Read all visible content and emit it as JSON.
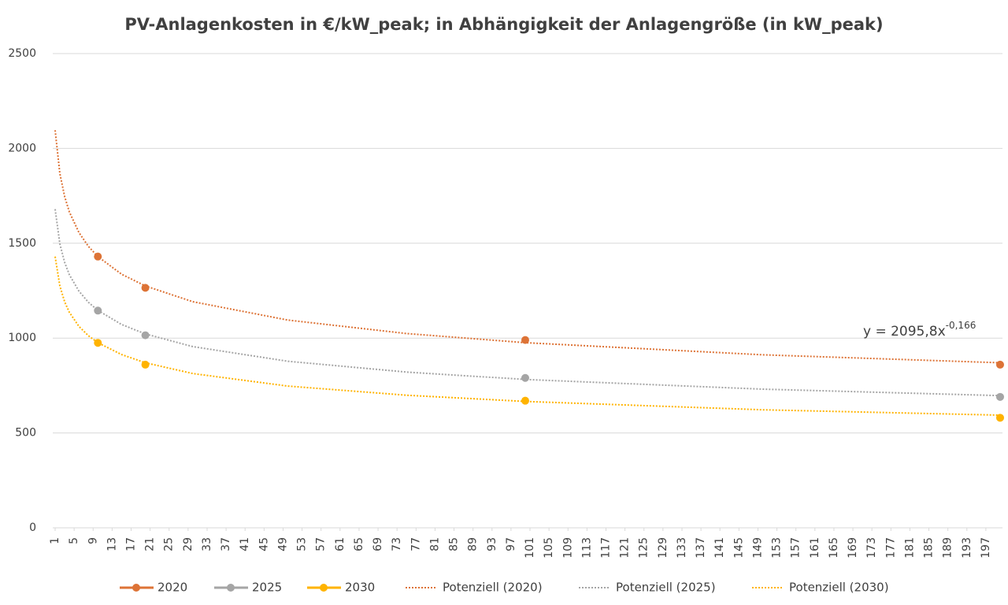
{
  "chart_data": {
    "type": "scatter",
    "title": "PV-Anlagenkosten in €/kW_peak; in Abhängigkeit der Anlagengröße (in kW_peak)",
    "xlim": [
      0.5,
      200.5
    ],
    "xticks": [
      1,
      5,
      9,
      13,
      17,
      21,
      25,
      29,
      33,
      37,
      41,
      45,
      49,
      53,
      57,
      61,
      65,
      69,
      73,
      77,
      81,
      85,
      89,
      93,
      97,
      101,
      105,
      109,
      113,
      117,
      121,
      125,
      129,
      133,
      137,
      141,
      145,
      149,
      153,
      157,
      161,
      165,
      169,
      173,
      177,
      181,
      185,
      189,
      193,
      197
    ],
    "ylim": [
      0,
      2500
    ],
    "yticks": [
      0,
      500,
      1000,
      1500,
      2000,
      2500
    ],
    "grid": true,
    "series": [
      {
        "name": "2020",
        "color": "#dd7336",
        "style": "marker",
        "x": [
          10,
          20,
          100,
          200
        ],
        "values": [
          1430,
          1265,
          990,
          860
        ]
      },
      {
        "name": "2025",
        "color": "#a5a5a5",
        "style": "marker",
        "x": [
          10,
          20,
          100,
          200
        ],
        "values": [
          1145,
          1015,
          790,
          690
        ]
      },
      {
        "name": "2030",
        "color": "#ffb300",
        "style": "marker",
        "x": [
          10,
          20,
          100,
          200
        ],
        "values": [
          975,
          860,
          670,
          580
        ]
      },
      {
        "name": "Potenziell (2020)",
        "color": "#dd7336",
        "style": "dotted",
        "x": [
          1,
          2,
          3,
          4,
          6,
          8,
          10,
          15,
          20,
          30,
          50,
          75,
          100,
          150,
          200
        ],
        "values": [
          2096,
          1868,
          1746,
          1665,
          1557,
          1484,
          1430,
          1337,
          1275,
          1192,
          1095,
          1024,
          976,
          912,
          870
        ]
      },
      {
        "name": "Potenziell (2025)",
        "color": "#a5a5a5",
        "style": "dotted",
        "x": [
          1,
          2,
          3,
          4,
          6,
          8,
          10,
          15,
          20,
          30,
          50,
          75,
          100,
          150,
          200
        ],
        "values": [
          1680,
          1497,
          1399,
          1334,
          1248,
          1189,
          1146,
          1072,
          1022,
          955,
          878,
          821,
          782,
          731,
          697
        ]
      },
      {
        "name": "Potenziell (2030)",
        "color": "#ffb300",
        "style": "dotted",
        "x": [
          1,
          2,
          3,
          4,
          6,
          8,
          10,
          15,
          20,
          30,
          50,
          75,
          100,
          150,
          200
        ],
        "values": [
          1430,
          1275,
          1191,
          1136,
          1062,
          1013,
          976,
          913,
          870,
          813,
          747,
          699,
          666,
          622,
          594
        ]
      }
    ],
    "annotation": {
      "text": "y = 2095,8x",
      "superscript": "-0,166"
    }
  }
}
